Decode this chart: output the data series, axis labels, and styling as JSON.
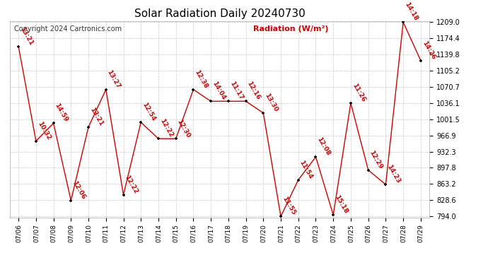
{
  "title": "Solar Radiation Daily 20240730",
  "copyright": "Copyright 2024 Cartronics.com",
  "legend_label": "Radiation (W/m²)",
  "dates": [
    "07/06",
    "07/07",
    "07/08",
    "07/09",
    "07/10",
    "07/11",
    "07/12",
    "07/13",
    "07/14",
    "07/15",
    "07/16",
    "07/17",
    "07/18",
    "07/19",
    "07/20",
    "07/21",
    "07/22",
    "07/23",
    "07/24",
    "07/25",
    "07/26",
    "07/27",
    "07/28",
    "07/29"
  ],
  "values": [
    1157,
    955,
    993,
    828,
    985,
    1065,
    840,
    995,
    960,
    960,
    1065,
    1040,
    1040,
    1040,
    1015,
    794,
    872,
    921,
    797,
    1036,
    893,
    862,
    1209,
    1127
  ],
  "labels": [
    "13:21",
    "10:32",
    "14:59",
    "12:06",
    "13:21",
    "13:27",
    "12:22",
    "12:54",
    "12:22",
    "12:30",
    "12:38",
    "14:04",
    "11:17",
    "12:16",
    "13:30",
    "11:55",
    "11:54",
    "12:08",
    "15:18",
    "11:26",
    "12:29",
    "14:23",
    "14:18",
    "14:26"
  ],
  "line_color": "#cc0000",
  "marker_color": "#000000",
  "label_color": "#cc0000",
  "grid_color": "#bbbbbb",
  "background_color": "#ffffff",
  "ylim_min": 794.0,
  "ylim_max": 1209.0,
  "yticks": [
    794.0,
    828.6,
    863.2,
    897.8,
    932.3,
    966.9,
    1001.5,
    1036.1,
    1070.7,
    1105.2,
    1139.8,
    1174.4,
    1209.0
  ],
  "title_fontsize": 11,
  "label_fontsize": 6.5,
  "copyright_fontsize": 7,
  "legend_fontsize": 8,
  "tick_fontsize": 7,
  "xtick_fontsize": 6.5
}
